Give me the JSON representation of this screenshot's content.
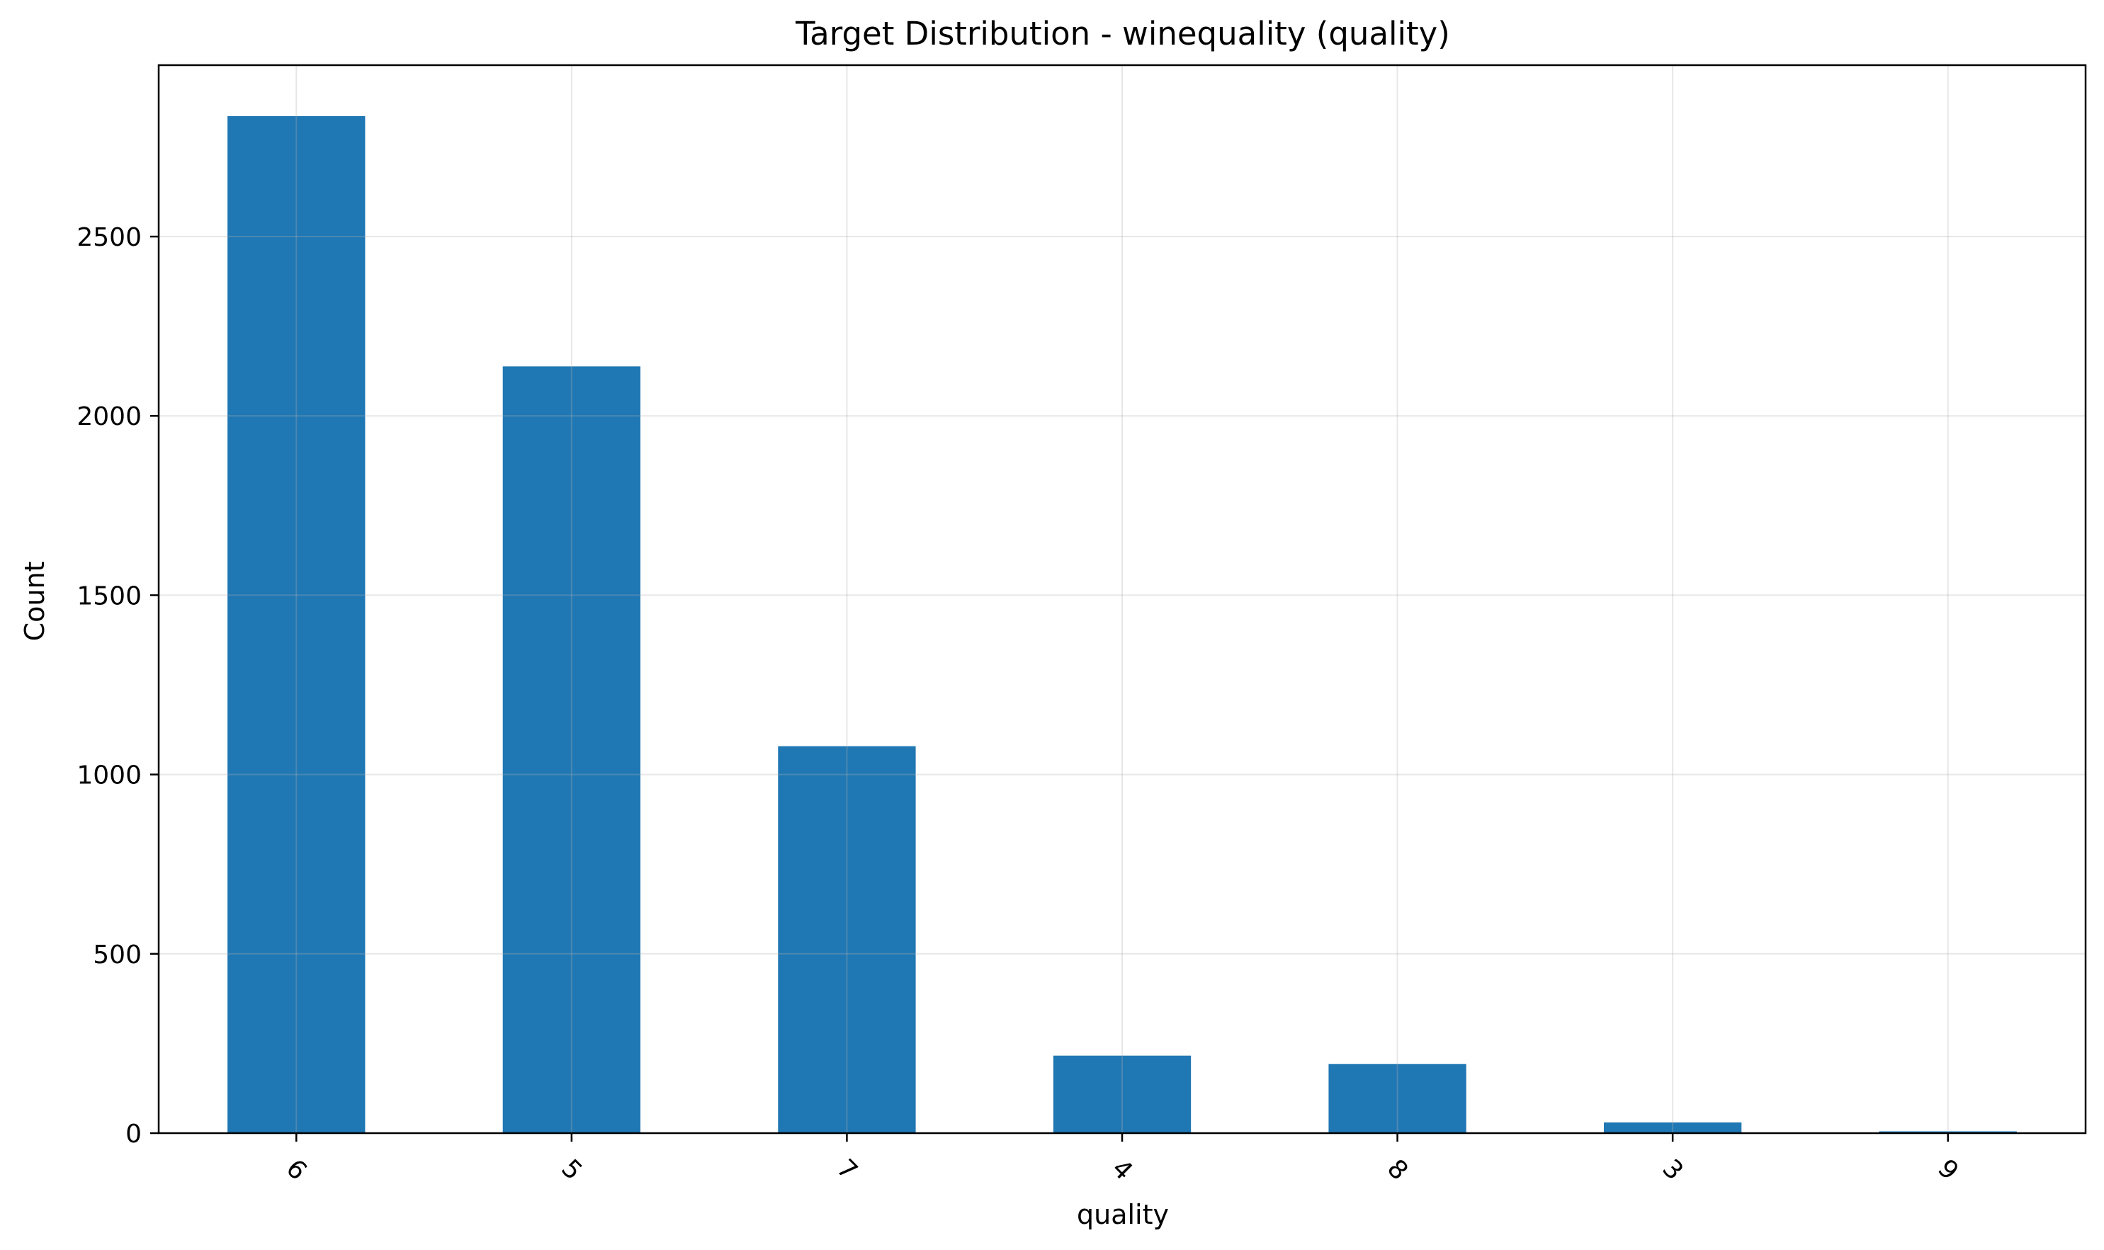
{
  "chart_data": {
    "type": "bar",
    "title": "Target Distribution - winequality (quality)",
    "xlabel": "quality",
    "ylabel": "Count",
    "categories": [
      "6",
      "5",
      "7",
      "4",
      "8",
      "3",
      "9"
    ],
    "values": [
      2836,
      2138,
      1079,
      216,
      193,
      30,
      5
    ],
    "ylim": [
      0,
      2978
    ],
    "yticks": [
      0,
      500,
      1000,
      1500,
      2000,
      2500
    ],
    "ytick_labels": [
      "0",
      "500",
      "1000",
      "1500",
      "2000",
      "2500"
    ],
    "x_tick_rotation_deg": 45,
    "grid": true,
    "legend": "none",
    "bar_color": "#1f77b4"
  }
}
